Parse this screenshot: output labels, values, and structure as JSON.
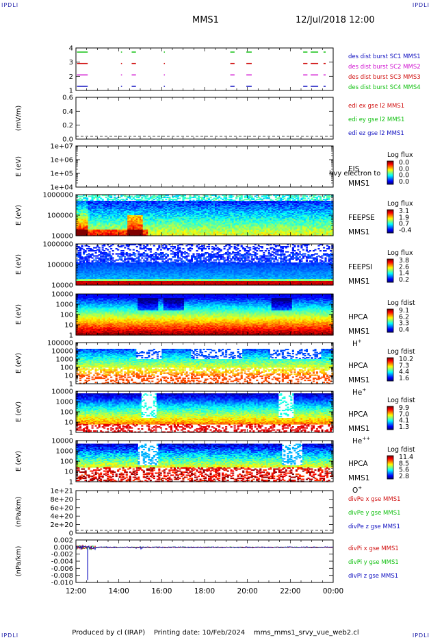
{
  "corner_mark": "IPDLI",
  "header": {
    "spacecraft": "MMS1",
    "date": "12/Jul/2018 12:00"
  },
  "footer": {
    "produced_by": "Produced by cl (IRAP)",
    "printing_date": "Printing date: 10/Feb/2024",
    "filename": "mms_mms1_srvy_vue_web2.cl"
  },
  "colors": {
    "c1": "#1010c0",
    "c2": "#d010d0",
    "c3": "#d01010",
    "c4": "#10c010",
    "dashed": "#000000"
  },
  "chart_data": {
    "type": "heatmap",
    "x_ticks": [
      "12:00",
      "14:00",
      "16:00",
      "18:00",
      "20:00",
      "22:00",
      "00:00"
    ],
    "x_range_hours": [
      12,
      24
    ],
    "panels": [
      {
        "id": "burst",
        "kind": "line",
        "ylabel": "",
        "yticks": [
          "4",
          "3",
          "2",
          "1"
        ],
        "legend": [
          {
            "text": "des dist burst SC1 MMS1",
            "color": "#1010c0"
          },
          {
            "text": "des dist burst SC2 MMS2",
            "color": "#d010d0"
          },
          {
            "text": "des dist burst SC3 MMS3",
            "color": "#d01010"
          },
          {
            "text": "des dist burst SC4 MMS4",
            "color": "#10c010"
          }
        ],
        "burst_intervals_hours": [
          [
            12.05,
            12.55
          ],
          [
            14.1,
            14.15
          ],
          [
            14.6,
            14.8
          ],
          [
            16.1,
            16.15
          ],
          [
            19.2,
            19.4
          ],
          [
            19.95,
            20.2
          ],
          [
            22.6,
            22.8
          ],
          [
            22.95,
            23.3
          ],
          [
            23.55,
            23.65
          ]
        ]
      },
      {
        "id": "edi",
        "kind": "line",
        "ylabel": "(mV/m)",
        "yticks": [
          "0.6",
          "0.4",
          "0.2",
          "0.0"
        ],
        "legend": [
          {
            "text": "edi ex gse l2 MMS1",
            "color": "#d01010"
          },
          {
            "text": "edi ey gse l2 MMS1",
            "color": "#10c010"
          },
          {
            "text": "edi ez gse l2 MMS1",
            "color": "#1010c0"
          }
        ]
      },
      {
        "id": "eis",
        "kind": "spectrogram",
        "ylabel": "E (eV)",
        "yticks": [
          "1e+07",
          "1e+06",
          "1e+05",
          "1e+04"
        ],
        "label_lines": [
          "EIS",
          "MMS1"
        ],
        "overlay_text": "hvy electron to",
        "colorbar": {
          "title": "Log flux",
          "ticks": [
            "0.0",
            "0.0",
            "0.0",
            "0.0"
          ]
        }
      },
      {
        "id": "feepse",
        "kind": "spectrogram",
        "ylabel": "E (eV)",
        "yticks": [
          "1000000",
          "100000",
          "10000"
        ],
        "label_lines": [
          "FEEPSE",
          "MMS1"
        ],
        "colorbar": {
          "title": "Log flux",
          "ticks": [
            "3.1",
            "1.9",
            "0.7",
            "-0.4"
          ]
        }
      },
      {
        "id": "feepsi",
        "kind": "spectrogram",
        "ylabel": "E (eV)",
        "yticks": [
          "1000000",
          "100000",
          "10000"
        ],
        "label_lines": [
          "FEEPSI",
          "MMS1"
        ],
        "colorbar": {
          "title": "Log flux",
          "ticks": [
            "3.8",
            "2.6",
            "1.4",
            "0.2"
          ]
        }
      },
      {
        "id": "hpca_h",
        "kind": "spectrogram",
        "ylabel": "E (eV)",
        "yticks": [
          "10000",
          "1000",
          "100",
          "10",
          "1"
        ],
        "label_lines": [
          "HPCA",
          "MMS1"
        ],
        "species": "H",
        "species_sup": "+",
        "colorbar": {
          "title": "Log fdist",
          "ticks": [
            "9.1",
            "6.2",
            "3.3",
            "0.4"
          ]
        }
      },
      {
        "id": "hpca_he",
        "kind": "spectrogram",
        "ylabel": "E (eV)",
        "yticks": [
          "100000",
          "10000",
          "1000",
          "100",
          "10",
          "1"
        ],
        "label_lines": [
          "HPCA",
          "MMS1"
        ],
        "species": "He",
        "species_sup": "+",
        "colorbar": {
          "title": "Log fdist",
          "ticks": [
            "10.2",
            "7.3",
            "4.4",
            "1.6"
          ]
        }
      },
      {
        "id": "hpca_hepp",
        "kind": "spectrogram",
        "ylabel": "E (eV)",
        "yticks": [
          "10000",
          "1000",
          "100",
          "10",
          "1"
        ],
        "label_lines": [
          "HPCA",
          "MMS1"
        ],
        "species": "He",
        "species_sup": "++",
        "colorbar": {
          "title": "Log fdist",
          "ticks": [
            "9.9",
            "7.0",
            "4.1",
            "1.3"
          ]
        }
      },
      {
        "id": "hpca_o",
        "kind": "spectrogram",
        "ylabel": "E (eV)",
        "yticks": [
          "10000",
          "1000",
          "100",
          "10",
          "1"
        ],
        "label_lines": [
          "HPCA",
          "MMS1"
        ],
        "species": "O",
        "species_sup": "+",
        "colorbar": {
          "title": "Log fdist",
          "ticks": [
            "11.4",
            "8.5",
            "5.6",
            "2.8"
          ]
        }
      },
      {
        "id": "divpe",
        "kind": "line",
        "ylabel": "(nPa/km)",
        "yticks": [
          "1e+21",
          "8e+20",
          "6e+20",
          "4e+20",
          "2e+20",
          "0"
        ],
        "legend": [
          {
            "text": "divPe x gse MMS1",
            "color": "#d01010"
          },
          {
            "text": "divPe y gse MMS1",
            "color": "#10c010"
          },
          {
            "text": "divPe z gse MMS1",
            "color": "#1010c0"
          }
        ]
      },
      {
        "id": "divpi",
        "kind": "line",
        "ylabel": "(nPa/km)",
        "yticks": [
          "0.002",
          "0.000",
          "-0.002",
          "-0.004",
          "-0.006",
          "-0.008",
          "-0.010"
        ],
        "ymin": -0.0105,
        "ymax": 0.0022,
        "legend": [
          {
            "text": "divPi x gse MMS1",
            "color": "#d01010"
          },
          {
            "text": "divPi y gse MMS1",
            "color": "#10c010"
          },
          {
            "text": "divPi z gse MMS1",
            "color": "#1010c0"
          }
        ],
        "spike": {
          "time_hours": 12.55,
          "value": -0.0098
        }
      }
    ]
  }
}
